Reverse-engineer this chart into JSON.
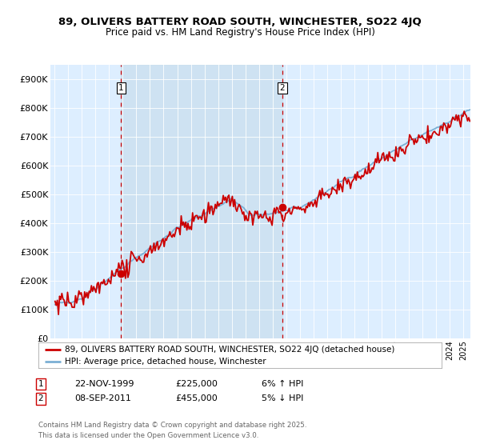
{
  "title1": "89, OLIVERS BATTERY ROAD SOUTH, WINCHESTER, SO22 4JQ",
  "title2": "Price paid vs. HM Land Registry's House Price Index (HPI)",
  "legend1": "89, OLIVERS BATTERY ROAD SOUTH, WINCHESTER, SO22 4JQ (detached house)",
  "legend2": "HPI: Average price, detached house, Winchester",
  "annotation1_date": "22-NOV-1999",
  "annotation1_price": "£225,000",
  "annotation1_hpi": "6% ↑ HPI",
  "annotation2_date": "08-SEP-2011",
  "annotation2_price": "£455,000",
  "annotation2_hpi": "5% ↓ HPI",
  "footer": "Contains HM Land Registry data © Crown copyright and database right 2025.\nThis data is licensed under the Open Government Licence v3.0.",
  "hpi_color": "#7bafd4",
  "price_color": "#cc0000",
  "vline_color": "#cc0000",
  "shade_color": "#cce0f0",
  "plot_bg_color": "#ddeeff",
  "grid_color": "#ffffff",
  "ylim": [
    0,
    950000
  ],
  "yticks": [
    0,
    100000,
    200000,
    300000,
    400000,
    500000,
    600000,
    700000,
    800000,
    900000
  ],
  "ytick_labels": [
    "£0",
    "£100K",
    "£200K",
    "£300K",
    "£400K",
    "£500K",
    "£600K",
    "£700K",
    "£800K",
    "£900K"
  ],
  "sale1_t": 1999.875,
  "sale1_price": 225000,
  "sale2_t": 2011.667,
  "sale2_price": 455000,
  "xmin": 1994.7,
  "xmax": 2025.5
}
